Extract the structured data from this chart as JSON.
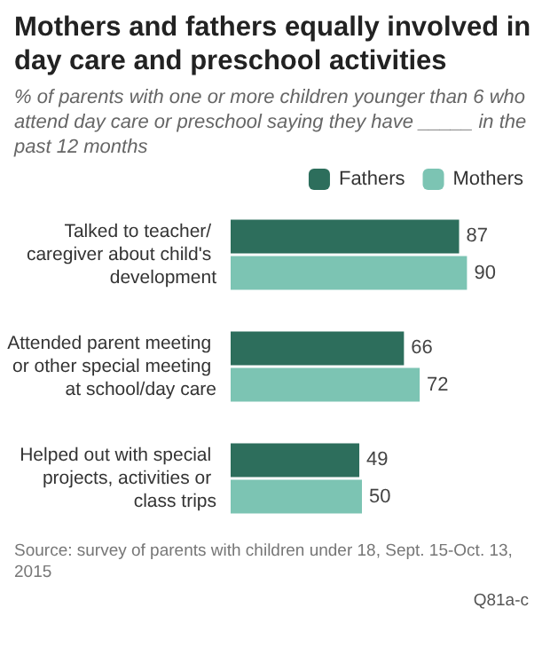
{
  "chart_data": {
    "type": "bar",
    "orientation": "horizontal",
    "title": "Mothers and fathers equally involved in day care and preschool activities",
    "subtitle": "% of parents with one or more children younger than 6 who attend day care or preschool saying they have _____ in the past 12 months",
    "categories": [
      "Talked to teacher/ caregiver about child's development",
      "Attended parent meeting or other special meeting at school/day care",
      "Helped out with special projects, activities or class trips"
    ],
    "series": [
      {
        "name": "Fathers",
        "color": "#2d6e5c",
        "values": [
          87,
          66,
          49
        ]
      },
      {
        "name": "Mothers",
        "color": "#7cc4b3",
        "values": [
          90,
          72,
          50
        ]
      }
    ],
    "data_labels": true,
    "legend": "top right",
    "annotations": [
      "Source: survey of parents with children under 18, Sept. 15-Oct. 13, 2015",
      "Q81a-c"
    ]
  }
}
